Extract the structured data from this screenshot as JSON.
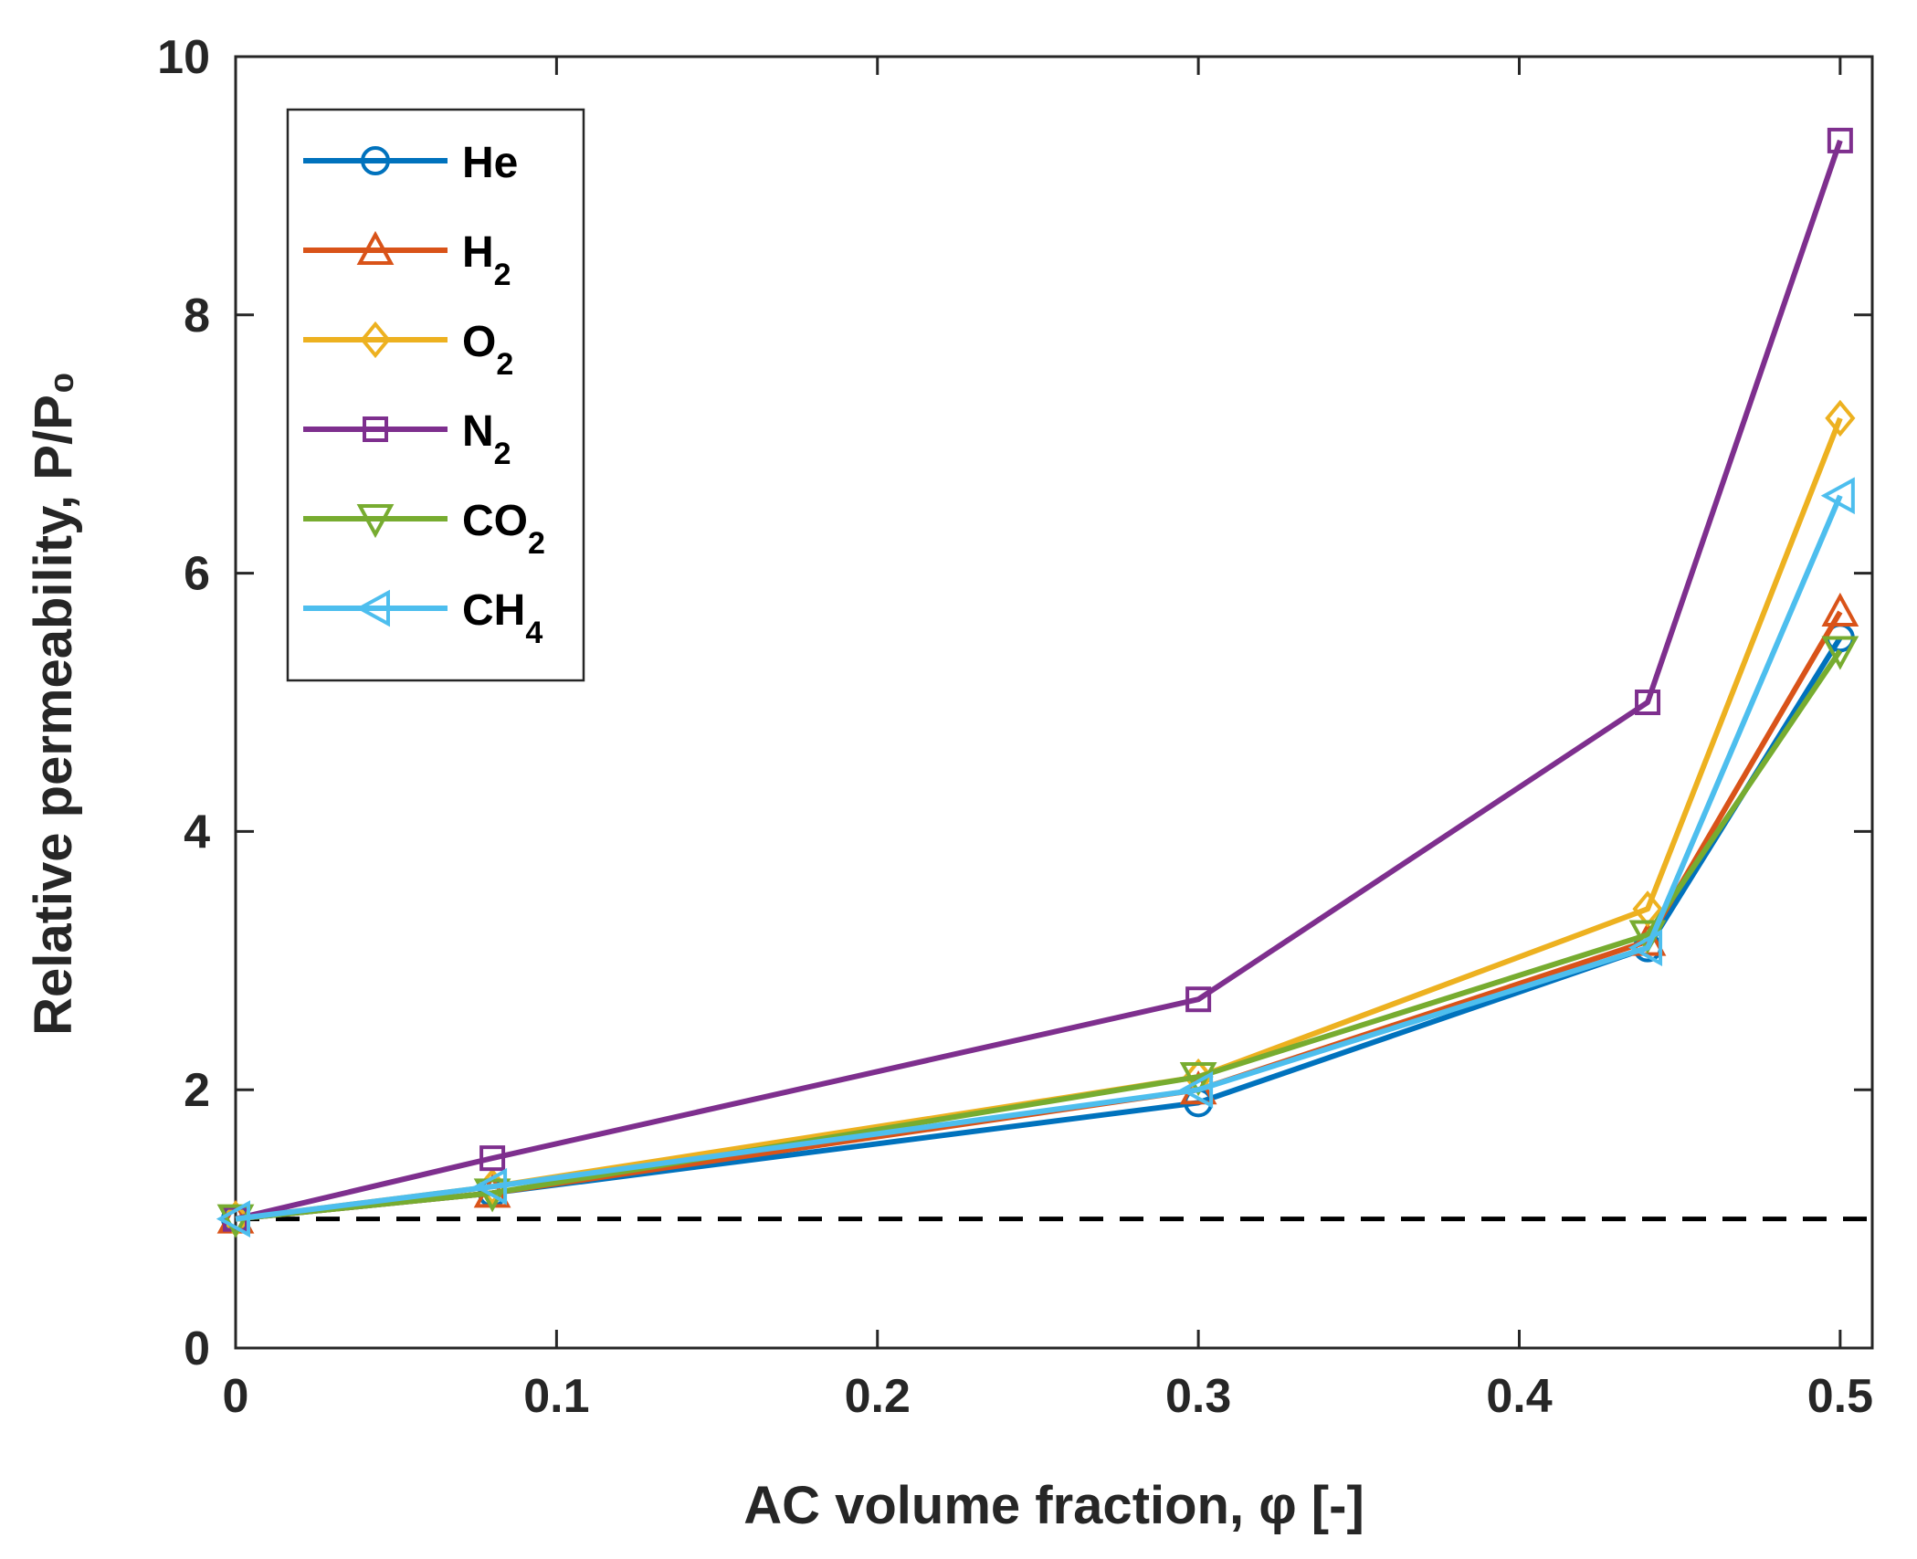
{
  "chart_data": {
    "type": "line",
    "xlabel": "AC volume fraction, φ [-]",
    "ylabel": "Relative permeability, P/P₀",
    "xlim": [
      0,
      0.51
    ],
    "ylim": [
      0,
      10
    ],
    "xticks": [
      0,
      0.1,
      0.2,
      0.3,
      0.4,
      0.5
    ],
    "xtick_labels": [
      "0",
      "0.1",
      "0.2",
      "0.3",
      "0.4",
      "0.5"
    ],
    "yticks": [
      0,
      2,
      4,
      6,
      8,
      10
    ],
    "ytick_labels": [
      "0",
      "2",
      "4",
      "6",
      "8",
      "10"
    ],
    "grid": false,
    "legend_position": "top-left",
    "reference_line": {
      "y": 1,
      "style": "dashed",
      "color": "#000000"
    },
    "x": [
      0,
      0.08,
      0.3,
      0.44,
      0.5
    ],
    "series": [
      {
        "name": "He",
        "label_main": "He",
        "label_sub": "",
        "marker": "circle",
        "color": "#0072BD",
        "values": [
          1.0,
          1.2,
          1.9,
          3.1,
          5.5
        ]
      },
      {
        "name": "H2",
        "label_main": "H",
        "label_sub": "2",
        "marker": "triangle-up",
        "color": "#D95319",
        "values": [
          1.0,
          1.2,
          2.0,
          3.15,
          5.7
        ]
      },
      {
        "name": "O2",
        "label_main": "O",
        "label_sub": "2",
        "marker": "diamond",
        "color": "#EDB120",
        "values": [
          1.0,
          1.25,
          2.1,
          3.4,
          7.2
        ]
      },
      {
        "name": "N2",
        "label_main": "N",
        "label_sub": "2",
        "marker": "square",
        "color": "#7E2F8E",
        "values": [
          1.0,
          1.47,
          2.7,
          5.0,
          9.35
        ]
      },
      {
        "name": "CO2",
        "label_main": "CO",
        "label_sub": "2",
        "marker": "triangle-down",
        "color": "#77AC30",
        "values": [
          1.0,
          1.2,
          2.1,
          3.2,
          5.4
        ]
      },
      {
        "name": "CH4",
        "label_main": "CH",
        "label_sub": "4",
        "marker": "triangle-left",
        "color": "#4DBEEE",
        "values": [
          1.0,
          1.25,
          2.0,
          3.1,
          6.6
        ]
      }
    ]
  }
}
